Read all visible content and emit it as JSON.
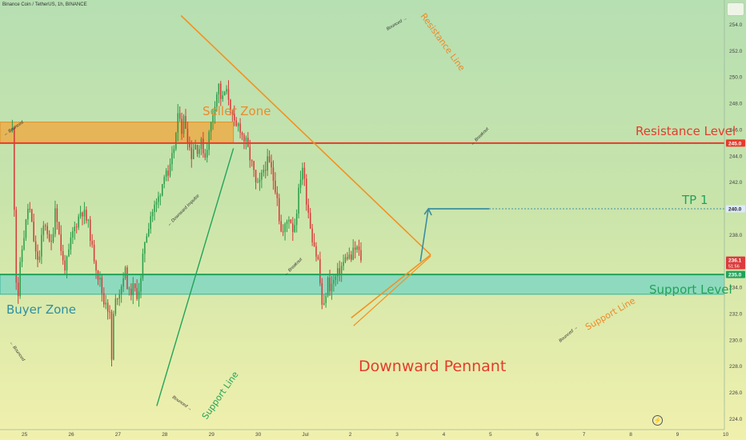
{
  "header": {
    "symbol": "Binance Coin / TetherUS, 1h, BINANCE"
  },
  "colors": {
    "candle_up": "#2a9d4a",
    "candle_down": "#d63a3a",
    "resistance": "#e53b2c",
    "support": "#22a35a",
    "seller_zone_fill": "#f0a53c",
    "buyer_zone_fill": "#6fd3c8",
    "pennant": "#f39122",
    "support_trend": "#22a35a",
    "target": "#3a8ea0",
    "price_tag_bg": "#dde9ff"
  },
  "chart_data": {
    "type": "candlestick",
    "y_axis": {
      "min": 223.7,
      "max": 255.0,
      "ticks": [
        224.0,
        226.0,
        228.0,
        230.0,
        232.0,
        234.0,
        236.0,
        238.0,
        240.0,
        242.0,
        244.0,
        246.0,
        248.0,
        250.0,
        252.0,
        254.0
      ]
    },
    "x_axis": {
      "ticks": [
        "25",
        "26",
        "27",
        "28",
        "29",
        "30",
        "Jul",
        "2",
        "3",
        "4",
        "5",
        "6",
        "7",
        "8",
        "9",
        "10"
      ]
    },
    "price_tags": [
      {
        "label": "245.0",
        "value": 245.0,
        "bg": "#e53b2c",
        "color": "#ffffff"
      },
      {
        "label": "240.0",
        "value": 240.0,
        "bg": "#dde9ff",
        "color": "#222222"
      },
      {
        "label": "236.1",
        "sub": "51:56",
        "value": 236.1,
        "bg": "#dc3b3b",
        "color": "#ffffff"
      },
      {
        "label": "235.0",
        "value": 235.0,
        "bg": "#22a35a",
        "color": "#ffffff"
      }
    ],
    "levels": [
      {
        "name": "Resistance Level",
        "value": 245.0
      },
      {
        "name": "Support Level",
        "value": 235.0
      },
      {
        "name": "TP 1",
        "value": 240.0,
        "x_start": 8.65,
        "x_end": 9.95
      }
    ],
    "zones": [
      {
        "name": "Seller Zone",
        "from": 245.0,
        "to": 246.6,
        "x_start": -0.5,
        "x_end": 4.48
      },
      {
        "name": "Buyer Zone",
        "from": 233.5,
        "to": 235.0,
        "x_start": -0.5,
        "x_end": 10.6
      }
    ],
    "trendlines": [
      {
        "name": "pennant-upper",
        "from": [
          3.36,
          254.7
        ],
        "to": [
          8.7,
          236.5
        ]
      },
      {
        "name": "pennant-lower",
        "from": [
          7.0,
          231.7
        ],
        "to": [
          8.7,
          236.5
        ]
      },
      {
        "name": "support-line-major",
        "from": [
          2.84,
          225.0
        ],
        "to": [
          4.48,
          244.6
        ]
      },
      {
        "name": "target-projection",
        "from": [
          8.48,
          236.0
        ],
        "to": [
          8.65,
          240.0
        ]
      }
    ],
    "annotations": [
      {
        "text": "Seller Zone",
        "style": "zone"
      },
      {
        "text": "Buyer Zone",
        "style": "zone"
      },
      {
        "text": "Resistance Level",
        "style": "level"
      },
      {
        "text": "Support Level",
        "style": "level"
      },
      {
        "text": "TP 1",
        "style": "level"
      },
      {
        "text": "Downward  Pennant",
        "style": "title"
      },
      {
        "text": "Resistance Line",
        "style": "trend"
      },
      {
        "text": "Support Line",
        "style": "trend"
      },
      {
        "text": "Support Line",
        "style": "trend"
      },
      {
        "text": "← Bounced",
        "style": "note"
      },
      {
        "text": "← Bounced",
        "style": "note"
      },
      {
        "text": "Bounced →",
        "style": "note"
      },
      {
        "text": "Bounced →",
        "style": "note"
      },
      {
        "text": "Bounced →",
        "style": "note"
      },
      {
        "text": "← Downward Impulse",
        "style": "note"
      },
      {
        "text": "← Breakout",
        "style": "note"
      },
      {
        "text": "← Breakout",
        "style": "note"
      }
    ],
    "candle_path": [
      [
        -0.5,
        246.0
      ],
      [
        -0.42,
        240.5
      ],
      [
        -0.35,
        236.0
      ],
      [
        -0.3,
        232.0
      ],
      [
        -0.2,
        235.0
      ],
      [
        -0.05,
        237.5
      ],
      [
        0.05,
        238.5
      ],
      [
        0.2,
        240.5
      ],
      [
        0.35,
        238.5
      ],
      [
        0.5,
        236.5
      ],
      [
        0.65,
        236.0
      ],
      [
        0.8,
        238.5
      ],
      [
        0.95,
        239.0
      ],
      [
        1.1,
        237.0
      ],
      [
        1.2,
        237.5
      ],
      [
        1.35,
        240.5
      ],
      [
        1.5,
        238.0
      ],
      [
        1.7,
        235.5
      ],
      [
        1.85,
        236.0
      ],
      [
        2.05,
        238.0
      ],
      [
        2.3,
        239.2
      ],
      [
        2.45,
        240.0
      ],
      [
        2.6,
        239.5
      ],
      [
        2.8,
        238.5
      ],
      [
        2.9,
        237.0
      ],
      [
        3.05,
        236.0
      ],
      [
        3.15,
        235.0
      ],
      [
        3.25,
        234.5
      ],
      [
        3.35,
        233.5
      ],
      [
        3.45,
        232.5
      ],
      [
        3.55,
        233.8
      ],
      [
        3.62,
        231.0
      ],
      [
        3.7,
        232.5
      ],
      [
        3.75,
        228.5
      ],
      [
        3.8,
        230.5
      ],
      [
        3.85,
        232.5
      ],
      [
        4.0,
        233.5
      ],
      [
        4.15,
        234.0
      ],
      [
        4.3,
        235.5
      ],
      [
        4.4,
        234.5
      ],
      [
        4.5,
        233.5
      ],
      [
        4.65,
        234.0
      ],
      [
        4.85,
        233.5
      ],
      [
        5.0,
        234.5
      ],
      [
        5.15,
        237.5
      ],
      [
        5.3,
        238.5
      ],
      [
        5.4,
        239.5
      ],
      [
        5.55,
        240.0
      ],
      [
        5.7,
        240.5
      ],
      [
        5.85,
        241.5
      ],
      [
        5.95,
        242.2
      ],
      [
        6.05,
        243.5
      ],
      [
        6.15,
        242.0
      ],
      [
        6.3,
        243.5
      ],
      [
        6.45,
        245.0
      ],
      [
        6.55,
        246.5
      ],
      [
        6.65,
        247.5
      ],
      [
        6.75,
        246.0
      ],
      [
        6.85,
        247.0
      ],
      [
        6.95,
        246.0
      ],
      [
        7.05,
        245.0
      ],
      [
        7.15,
        244.0
      ],
      [
        7.3,
        245.0
      ],
      [
        7.45,
        244.5
      ],
      [
        7.6,
        245.0
      ],
      [
        7.75,
        244.0
      ],
      [
        7.9,
        245.5
      ],
      [
        8.05,
        247.0
      ],
      [
        8.2,
        248.5
      ],
      [
        8.35,
        249.5
      ],
      [
        8.45,
        248.0
      ],
      [
        8.6,
        249.0
      ],
      [
        8.75,
        248.5
      ],
      [
        8.9,
        247.0
      ],
      [
        9.05,
        246.0
      ],
      [
        9.2,
        246.5
      ],
      [
        9.35,
        245.5
      ],
      [
        9.5,
        245.0
      ],
      [
        9.65,
        244.0
      ],
      [
        9.8,
        243.0
      ],
      [
        9.95,
        241.5
      ],
      [
        10.1,
        242.0
      ],
      [
        10.25,
        243.0
      ],
      [
        10.4,
        243.6
      ],
      [
        10.55,
        243.2
      ],
      [
        10.7,
        242.0
      ],
      [
        10.85,
        241.0
      ],
      [
        10.95,
        238.5
      ],
      [
        11.05,
        238.0
      ],
      [
        11.2,
        238.8
      ],
      [
        11.35,
        239.5
      ],
      [
        11.5,
        238.5
      ],
      [
        11.6,
        239.0
      ],
      [
        11.7,
        240.5
      ],
      [
        11.8,
        242.0
      ],
      [
        11.9,
        243.5
      ],
      [
        12.0,
        242.0
      ],
      [
        12.1,
        240.5
      ],
      [
        12.2,
        239.5
      ],
      [
        12.3,
        238.0
      ],
      [
        12.4,
        237.5
      ],
      [
        12.5,
        236.5
      ],
      [
        12.6,
        236.0
      ],
      [
        12.7,
        233.5
      ],
      [
        12.8,
        232.0
      ],
      [
        12.9,
        233.5
      ],
      [
        13.0,
        234.5
      ],
      [
        13.1,
        234.0
      ],
      [
        13.25,
        234.5
      ],
      [
        13.4,
        235.0
      ],
      [
        13.55,
        235.5
      ],
      [
        13.7,
        236.0
      ],
      [
        13.85,
        236.5
      ],
      [
        14.0,
        236.2
      ],
      [
        14.1,
        236.8
      ],
      [
        14.25,
        237.0
      ],
      [
        14.4,
        236.3
      ],
      [
        14.5,
        236.1
      ]
    ],
    "candle_x_scale_note": "Candle path x values are in half-days from the 25 tick (path x/2 = days after 25)."
  }
}
